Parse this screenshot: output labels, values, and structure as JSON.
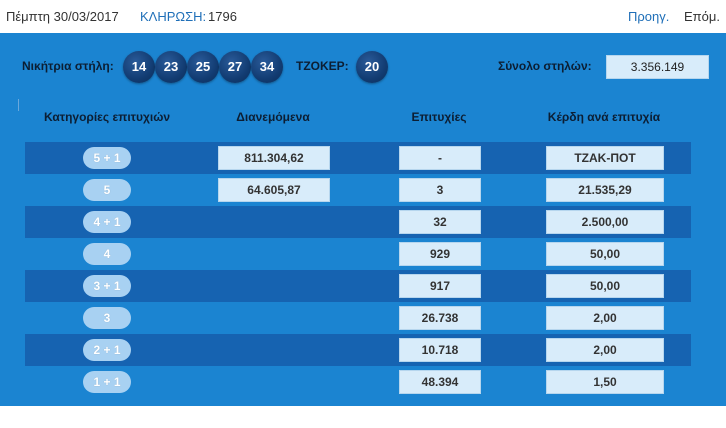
{
  "topbar": {
    "date": "Πέμπτη 30/03/2017",
    "draw_label": "ΚΛΗΡΩΣΗ:",
    "draw_number": "1796",
    "prev_label": "Προηγ.",
    "next_label": "Επόμ."
  },
  "results": {
    "winning_label": "Νικήτρια στήλη:",
    "numbers": [
      "14",
      "23",
      "25",
      "27",
      "34"
    ],
    "joker_label": "ΤΖΟΚΕΡ:",
    "joker": "20",
    "total_columns_label": "Σύνολο στηλών:",
    "total_columns": "3.356.149"
  },
  "table": {
    "headers": {
      "category": "Κατηγορίες επιτυχιών",
      "distributed": "Διανεμόμενα",
      "winners": "Επιτυχίες",
      "prize": "Κέρδη ανά επιτυχία"
    },
    "rows": [
      {
        "category": "5 + 1",
        "distributed": "811.304,62",
        "winners": "-",
        "prize": "ΤΖΑΚ-ΠΟΤ"
      },
      {
        "category": "5",
        "distributed": "64.605,87",
        "winners": "3",
        "prize": "21.535,29"
      },
      {
        "category": "4 + 1",
        "distributed": "",
        "winners": "32",
        "prize": "2.500,00"
      },
      {
        "category": "4",
        "distributed": "",
        "winners": "929",
        "prize": "50,00"
      },
      {
        "category": "3 + 1",
        "distributed": "",
        "winners": "917",
        "prize": "50,00"
      },
      {
        "category": "3",
        "distributed": "",
        "winners": "26.738",
        "prize": "2,00"
      },
      {
        "category": "2 + 1",
        "distributed": "",
        "winners": "10.718",
        "prize": "2,00"
      },
      {
        "category": "1 + 1",
        "distributed": "",
        "winners": "48.394",
        "prize": "1,50"
      }
    ]
  },
  "colors": {
    "panel": "#1b84d1",
    "row_dark": "#1663b1",
    "ball": "#123c72",
    "cell": "#d8ecfa",
    "link": "#1f6fb8"
  }
}
